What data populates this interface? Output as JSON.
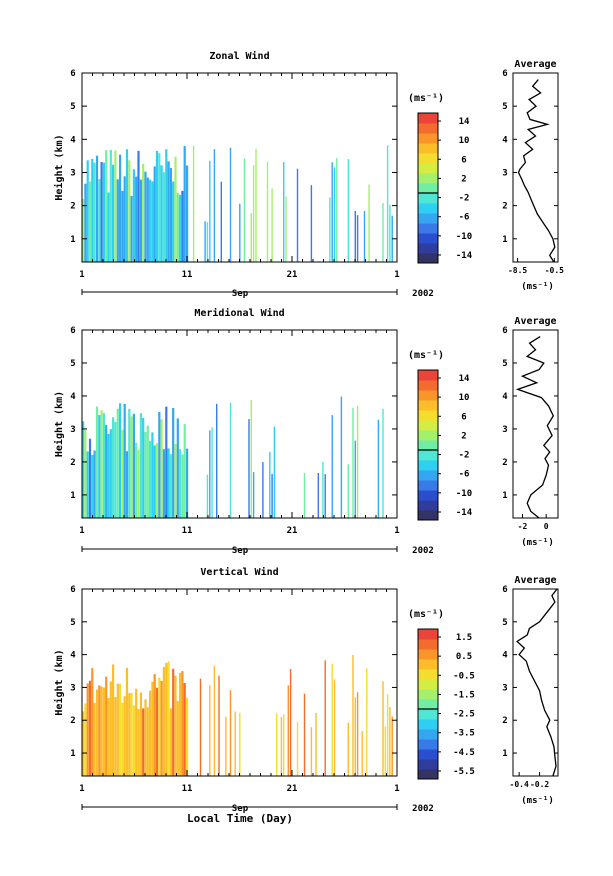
{
  "figure": {
    "xlabel": "Local Time (Day)",
    "month_label": "Sep",
    "year_label": "2002",
    "colorbar_unit": "(ms⁻¹)",
    "avg_title": "Average",
    "avg_unit": "(ms⁻¹)"
  },
  "chart_data": [
    {
      "type": "heatmap",
      "title": "Zonal Wind",
      "xlabel": "Sep",
      "ylabel": "Height (km)",
      "xlim": [
        1,
        31
      ],
      "x_ticks": [
        "1",
        "11",
        "21",
        "1"
      ],
      "ylim": [
        0.3,
        6
      ],
      "y_ticks": [
        "1",
        "2",
        "3",
        "4",
        "5",
        "6"
      ],
      "colorbar": {
        "unit": "(ms⁻¹)",
        "range": [
          -15,
          15
        ],
        "ticks": [
          "14",
          "10",
          "6",
          "2",
          "-2",
          "-6",
          "-10",
          "-14"
        ],
        "colors": [
          "#333366",
          "#2e3d9e",
          "#2a4ed0",
          "#3a7ae8",
          "#35a6f0",
          "#2ecff0",
          "#4fe6d6",
          "#70eea4",
          "#a4ef6c",
          "#d4ed42",
          "#f4dd2e",
          "#fbbd2a",
          "#f99529",
          "#f36c2e",
          "#ea4538"
        ]
      },
      "average": {
        "title": "Average",
        "xlabel": "(ms⁻¹)",
        "x_ticks": [
          "-8.5",
          "-0.5"
        ],
        "xlim": [
          -9.5,
          0.3
        ],
        "heights": [
          0.3,
          0.5,
          0.75,
          1.0,
          1.25,
          1.5,
          1.75,
          2.0,
          2.2,
          2.4,
          2.6,
          2.8,
          3.0,
          3.1,
          3.3,
          3.5,
          3.7,
          3.9,
          4.1,
          4.3,
          4.45,
          4.6,
          4.8,
          5.0,
          5.2,
          5.4,
          5.6,
          5.8
        ],
        "values": [
          -0.6,
          -1.5,
          -0.4,
          -0.8,
          -1.8,
          -3.0,
          -4.2,
          -5.0,
          -5.6,
          -6.2,
          -7.0,
          -7.6,
          -8.3,
          -8.0,
          -6.8,
          -7.2,
          -5.2,
          -6.8,
          -4.6,
          -6.2,
          -2.0,
          -5.8,
          -6.4,
          -4.5,
          -6.0,
          -3.5,
          -5.2,
          -4.0
        ]
      }
    },
    {
      "type": "heatmap",
      "title": "Meridional Wind",
      "xlabel": "Sep",
      "ylabel": "Height (km)",
      "xlim": [
        1,
        31
      ],
      "x_ticks": [
        "1",
        "11",
        "21",
        "1"
      ],
      "ylim": [
        0.3,
        6
      ],
      "y_ticks": [
        "1",
        "2",
        "3",
        "4",
        "5",
        "6"
      ],
      "colorbar": {
        "unit": "(ms⁻¹)",
        "range": [
          -15,
          15
        ],
        "ticks": [
          "14",
          "10",
          "6",
          "2",
          "-2",
          "-6",
          "-10",
          "-14"
        ],
        "colors": [
          "#333366",
          "#2e3d9e",
          "#2a4ed0",
          "#3a7ae8",
          "#35a6f0",
          "#2ecff0",
          "#4fe6d6",
          "#70eea4",
          "#a4ef6c",
          "#d4ed42",
          "#f4dd2e",
          "#fbbd2a",
          "#f99529",
          "#f36c2e",
          "#ea4538"
        ]
      },
      "average": {
        "title": "Average",
        "xlabel": "(ms⁻¹)",
        "x_ticks": [
          "-2",
          "0"
        ],
        "xlim": [
          -2.8,
          1.0
        ],
        "heights": [
          0.3,
          0.5,
          0.75,
          1.0,
          1.3,
          1.6,
          1.9,
          2.1,
          2.3,
          2.5,
          2.8,
          3.1,
          3.4,
          3.7,
          3.95,
          4.2,
          4.4,
          4.6,
          4.8,
          5.0,
          5.2,
          5.4,
          5.6,
          5.8
        ],
        "values": [
          -0.6,
          -1.3,
          -1.6,
          -1.3,
          -0.3,
          0.0,
          0.2,
          -0.1,
          0.3,
          -0.2,
          0.5,
          0.1,
          0.6,
          0.2,
          -0.4,
          -2.4,
          -0.8,
          -2.0,
          -0.6,
          -0.2,
          -1.6,
          -0.9,
          -1.4,
          -0.5
        ]
      }
    },
    {
      "type": "heatmap",
      "title": "Vertical Wind",
      "xlabel": "Sep",
      "ylabel": "Height (km)",
      "xlim": [
        1,
        31
      ],
      "x_ticks": [
        "1",
        "11",
        "21",
        "1"
      ],
      "ylim": [
        0.3,
        6
      ],
      "y_ticks": [
        "1",
        "2",
        "3",
        "4",
        "5",
        "6"
      ],
      "colorbar": {
        "unit": "(ms⁻¹)",
        "range": [
          -6.5,
          2.0
        ],
        "ticks": [
          "1.5",
          "0.5",
          "-0.5",
          "-1.5",
          "-2.5",
          "-3.5",
          "-4.5",
          "-5.5"
        ],
        "colors": [
          "#333366",
          "#2e3d9e",
          "#2a4ed0",
          "#3a7ae8",
          "#35a6f0",
          "#2ecff0",
          "#4fe6d6",
          "#70eea4",
          "#a4ef6c",
          "#d4ed42",
          "#f4dd2e",
          "#fbbd2a",
          "#f99529",
          "#f36c2e",
          "#ea4538"
        ]
      },
      "average": {
        "title": "Average",
        "xlabel": "(ms⁻¹)",
        "x_ticks": [
          "-0.4",
          "-0.2"
        ],
        "xlim": [
          -0.46,
          -0.02
        ],
        "heights": [
          0.3,
          0.6,
          0.9,
          1.2,
          1.5,
          1.8,
          2.0,
          2.3,
          2.6,
          2.9,
          3.2,
          3.5,
          3.8,
          4.0,
          4.2,
          4.4,
          4.6,
          4.8,
          5.0,
          5.2,
          5.4,
          5.6,
          5.8,
          6.0
        ],
        "values": [
          -0.07,
          -0.04,
          -0.05,
          -0.06,
          -0.09,
          -0.13,
          -0.1,
          -0.15,
          -0.18,
          -0.2,
          -0.25,
          -0.3,
          -0.33,
          -0.4,
          -0.35,
          -0.42,
          -0.32,
          -0.3,
          -0.2,
          -0.15,
          -0.1,
          -0.05,
          -0.08,
          -0.03
        ]
      }
    }
  ]
}
